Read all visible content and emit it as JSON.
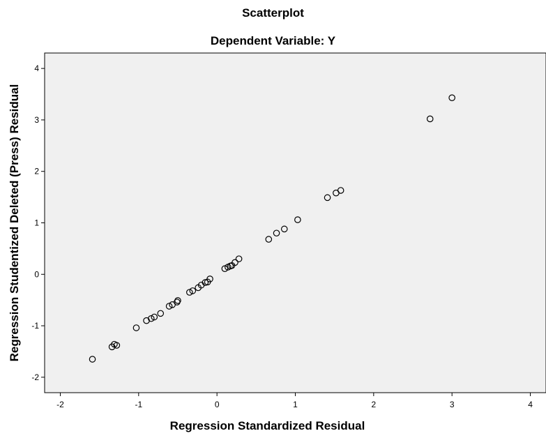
{
  "chart_data": {
    "type": "scatter",
    "title": "Scatterplot",
    "subtitle": "Dependent Variable: Y",
    "xlabel": "Regression Standardized Residual",
    "ylabel": "Regression Studentized Deleted (Press) Residual",
    "xlim": [
      -2.2,
      4.2
    ],
    "ylim": [
      -2.3,
      4.3
    ],
    "x_ticks": [
      -2,
      -1,
      0,
      1,
      2,
      3,
      4
    ],
    "y_ticks": [
      -2,
      -1,
      0,
      1,
      2,
      3,
      4
    ],
    "grid": false,
    "background_color": "#f0f0f0",
    "marker": "open-circle",
    "points": [
      {
        "x": -1.59,
        "y": -1.65
      },
      {
        "x": -1.34,
        "y": -1.41
      },
      {
        "x": -1.31,
        "y": -1.36
      },
      {
        "x": -1.28,
        "y": -1.38
      },
      {
        "x": -1.03,
        "y": -1.04
      },
      {
        "x": -0.9,
        "y": -0.9
      },
      {
        "x": -0.84,
        "y": -0.86
      },
      {
        "x": -0.8,
        "y": -0.83
      },
      {
        "x": -0.72,
        "y": -0.76
      },
      {
        "x": -0.61,
        "y": -0.62
      },
      {
        "x": -0.57,
        "y": -0.59
      },
      {
        "x": -0.51,
        "y": -0.54
      },
      {
        "x": -0.5,
        "y": -0.51
      },
      {
        "x": -0.35,
        "y": -0.35
      },
      {
        "x": -0.31,
        "y": -0.32
      },
      {
        "x": -0.24,
        "y": -0.26
      },
      {
        "x": -0.2,
        "y": -0.21
      },
      {
        "x": -0.15,
        "y": -0.16
      },
      {
        "x": -0.12,
        "y": -0.15
      },
      {
        "x": -0.09,
        "y": -0.09
      },
      {
        "x": 0.1,
        "y": 0.11
      },
      {
        "x": 0.14,
        "y": 0.14
      },
      {
        "x": 0.17,
        "y": 0.16
      },
      {
        "x": 0.19,
        "y": 0.17
      },
      {
        "x": 0.23,
        "y": 0.23
      },
      {
        "x": 0.28,
        "y": 0.3
      },
      {
        "x": 0.66,
        "y": 0.68
      },
      {
        "x": 0.76,
        "y": 0.8
      },
      {
        "x": 0.86,
        "y": 0.88
      },
      {
        "x": 1.03,
        "y": 1.06
      },
      {
        "x": 1.41,
        "y": 1.49
      },
      {
        "x": 1.52,
        "y": 1.58
      },
      {
        "x": 1.58,
        "y": 1.63
      },
      {
        "x": 2.72,
        "y": 3.02
      },
      {
        "x": 3.0,
        "y": 3.43
      }
    ]
  }
}
